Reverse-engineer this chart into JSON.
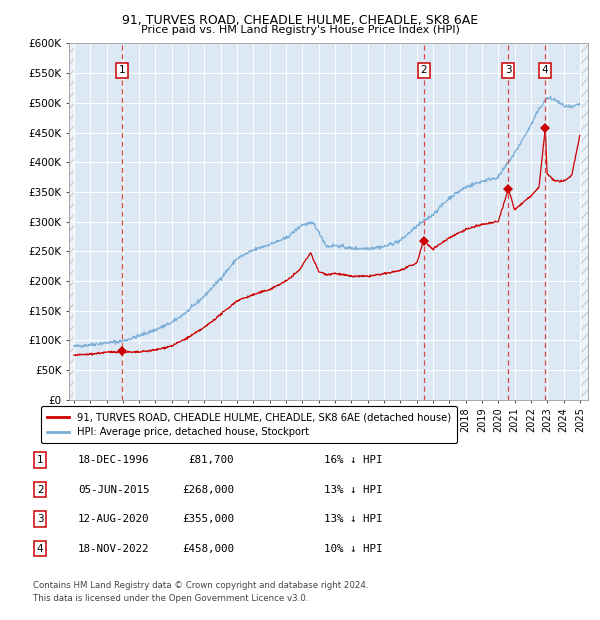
{
  "title1": "91, TURVES ROAD, CHEADLE HULME, CHEADLE, SK8 6AE",
  "title2": "Price paid vs. HM Land Registry's House Price Index (HPI)",
  "ylim": [
    0,
    600000
  ],
  "yticks": [
    0,
    50000,
    100000,
    150000,
    200000,
    250000,
    300000,
    350000,
    400000,
    450000,
    500000,
    550000,
    600000
  ],
  "ytick_labels": [
    "£0",
    "£50K",
    "£100K",
    "£150K",
    "£200K",
    "£250K",
    "£300K",
    "£350K",
    "£400K",
    "£450K",
    "£500K",
    "£550K",
    "£600K"
  ],
  "xlim_start": 1993.7,
  "xlim_end": 2025.5,
  "xticks": [
    1994,
    1995,
    1996,
    1997,
    1998,
    1999,
    2000,
    2001,
    2002,
    2003,
    2004,
    2005,
    2006,
    2007,
    2008,
    2009,
    2010,
    2011,
    2012,
    2013,
    2014,
    2015,
    2016,
    2017,
    2018,
    2019,
    2020,
    2021,
    2022,
    2023,
    2024,
    2025
  ],
  "bg_color": "#dce9f5",
  "grid_color": "#ffffff",
  "sale_line_color": "#cc0000",
  "hpi_line_color": "#7aaed6",
  "marker_color": "#cc0000",
  "dashed_line_color": "#dd4444",
  "transactions": [
    {
      "label": "1",
      "date": 1996.96,
      "price": 81700,
      "annotation": "18-DEC-1996",
      "price_str": "£81,700",
      "hpi_str": "16% ↓ HPI"
    },
    {
      "label": "2",
      "date": 2015.43,
      "price": 268000,
      "annotation": "05-JUN-2015",
      "price_str": "£268,000",
      "hpi_str": "13% ↓ HPI"
    },
    {
      "label": "3",
      "date": 2020.62,
      "price": 355000,
      "annotation": "12-AUG-2020",
      "price_str": "£355,000",
      "hpi_str": "13% ↓ HPI"
    },
    {
      "label": "4",
      "date": 2022.88,
      "price": 458000,
      "annotation": "18-NOV-2022",
      "price_str": "£458,000",
      "hpi_str": "10% ↓ HPI"
    }
  ],
  "legend1": "91, TURVES ROAD, CHEADLE HULME, CHEADLE, SK8 6AE (detached house)",
  "legend2": "HPI: Average price, detached house, Stockport",
  "footer1": "Contains HM Land Registry data © Crown copyright and database right 2024.",
  "footer2": "This data is licensed under the Open Government Licence v3.0."
}
